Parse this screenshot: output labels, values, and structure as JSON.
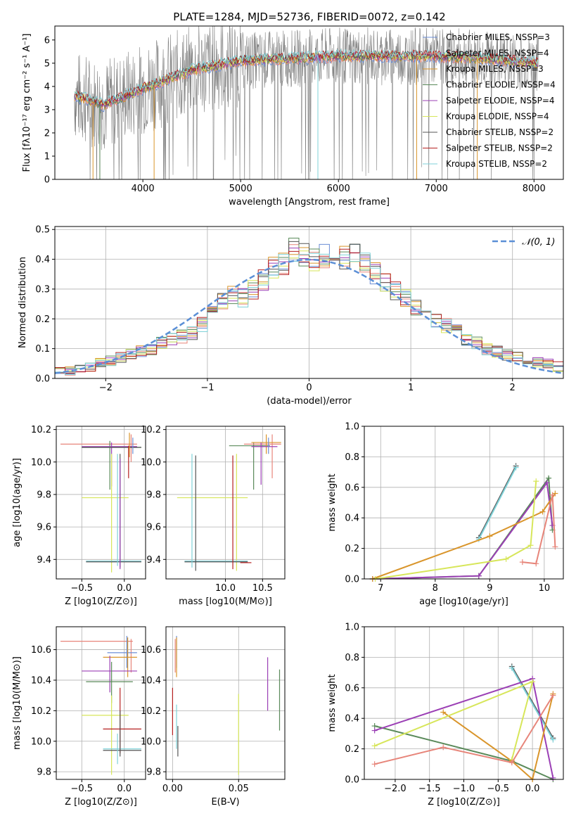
{
  "figure_title": "PLATE=1284, MJD=52736, FIBERID=0072, z=0.142",
  "series_colors": [
    "#6b8ed6",
    "#e7857a",
    "#d9952b",
    "#5a8a5a",
    "#9b3fb5",
    "#d7e65a",
    "#555555",
    "#b52020",
    "#7fd2d8"
  ],
  "chart_data": [
    {
      "type": "line",
      "title": "PLATE=1284, MJD=52736, FIBERID=0072, z=0.142",
      "xlabel": "wavelength [Angstrom, rest frame]",
      "ylabel": "Flux [fλ10⁻¹⁷ erg cm⁻² s⁻¹ A⁻¹]",
      "xlim": [
        3100,
        8300
      ],
      "ylim": [
        0,
        6.6
      ],
      "xticks": [
        "4000",
        "5000",
        "6000",
        "7000",
        "8000"
      ],
      "yticks": [
        "0",
        "1",
        "2",
        "3",
        "4",
        "5",
        "6"
      ],
      "legend": [
        "Chabrier MILES, NSSP=3",
        "Salpeter MILES, NSSP=4",
        "Kroupa MILES, NSSP=3",
        "Chabrier ELODIE, NSSP=4",
        "Salpeter ELODIE, NSSP=4",
        "Kroupa ELODIE, NSSP=4",
        "Chabrier STELIB, NSSP=2",
        "Salpeter STELIB, NSSP=2",
        "Kroupa STELIB, NSSP=2"
      ],
      "legend_position": "right",
      "grid": false,
      "continuum": {
        "x": [
          3300,
          3600,
          4000,
          4500,
          5000,
          5500,
          6000,
          6500,
          7000,
          7500,
          8000
        ],
        "y": [
          3.6,
          3.2,
          3.9,
          4.7,
          5.1,
          5.2,
          5.3,
          5.3,
          5.3,
          5.2,
          5.0
        ]
      }
    },
    {
      "type": "line",
      "xlabel": "(data-model)/error",
      "ylabel": "Normed distribution",
      "xlim": [
        -2.5,
        2.5
      ],
      "ylim": [
        0,
        0.51
      ],
      "xticks": [
        "−2",
        "−1",
        "0",
        "1",
        "2"
      ],
      "yticks": [
        "0.0",
        "0.1",
        "0.2",
        "0.3",
        "0.4",
        "0.5"
      ],
      "grid": true,
      "legend": [
        "𝒩(0, 1)"
      ],
      "legend_position": "top-right",
      "series": [
        {
          "name": "𝒩(0, 1)",
          "x": [
            -2.5,
            -2.0,
            -1.5,
            -1.0,
            -0.5,
            0,
            0.5,
            1.0,
            1.5,
            2.0,
            2.5
          ],
          "y": [
            0.018,
            0.054,
            0.13,
            0.242,
            0.352,
            0.399,
            0.352,
            0.242,
            0.13,
            0.054,
            0.018
          ]
        }
      ],
      "histograms": {
        "bin_edges": [
          -2.5,
          -2.4,
          -2.3,
          -2.2,
          -2.1,
          -2.0,
          -1.9,
          -1.8,
          -1.7,
          -1.6,
          -1.5,
          -1.4,
          -1.3,
          -1.2,
          -1.1,
          -1.0,
          -0.9,
          -0.8,
          -0.7,
          -0.6,
          -0.5,
          -0.4,
          -0.3,
          -0.2,
          -0.1,
          0.0,
          0.1,
          0.2,
          0.3,
          0.4,
          0.5,
          0.6,
          0.7,
          0.8,
          0.9,
          1.0,
          1.1,
          1.2,
          1.3,
          1.4,
          1.5,
          1.6,
          1.7,
          1.8,
          1.9,
          2.0,
          2.1,
          2.2,
          2.3,
          2.4,
          2.5
        ],
        "base_values": [
          0.025,
          0.027,
          0.03,
          0.04,
          0.05,
          0.06,
          0.07,
          0.08,
          0.09,
          0.1,
          0.12,
          0.135,
          0.14,
          0.15,
          0.18,
          0.22,
          0.26,
          0.28,
          0.27,
          0.3,
          0.33,
          0.37,
          0.385,
          0.43,
          0.42,
          0.4,
          0.41,
          0.43,
          0.41,
          0.42,
          0.39,
          0.35,
          0.32,
          0.29,
          0.27,
          0.24,
          0.22,
          0.2,
          0.18,
          0.16,
          0.13,
          0.12,
          0.1,
          0.09,
          0.08,
          0.07,
          0.06,
          0.055,
          0.05,
          0.04
        ]
      }
    },
    {
      "type": "scatter",
      "xlabel": "Z [log10(Z/Z⊙)]",
      "ylabel": "age  [log10(age/yr)]",
      "xlim": [
        -0.8,
        0.25
      ],
      "ylim": [
        9.28,
        10.22
      ],
      "xticks": [
        "−0.5",
        "0.0"
      ],
      "yticks": [
        "9.4",
        "9.6",
        "9.8",
        "10.0",
        "10.2"
      ],
      "grid": true
    },
    {
      "type": "scatter",
      "xlabel": "mass [log10(M/M⊙)]",
      "xlim": [
        9.2,
        10.8
      ],
      "ylim": [
        9.28,
        10.22
      ],
      "xticks": [
        "10.0",
        "10.5"
      ],
      "yticks": [
        "9.4",
        "9.6",
        "9.8",
        "10.0",
        "10.2"
      ],
      "grid": true
    },
    {
      "type": "line",
      "xlabel": "age  [log10(age/yr)]",
      "ylabel": "mass weight",
      "xlim": [
        6.7,
        10.35
      ],
      "ylim": [
        0,
        1
      ],
      "xticks": [
        "7",
        "8",
        "9",
        "10"
      ],
      "yticks": [
        "0.0",
        "0.2",
        "0.4",
        "0.6",
        "0.8",
        "1.0"
      ],
      "grid": true,
      "series": [
        {
          "x": [
            8.8,
            9.48
          ],
          "y": [
            0.27,
            0.74
          ]
        },
        {
          "x": [
            8.8,
            9.48
          ],
          "y": [
            0.26,
            0.73
          ]
        },
        {
          "x": [
            6.85,
            8.8,
            10.08,
            10.15
          ],
          "y": [
            0.0,
            0.02,
            0.66,
            0.32
          ]
        },
        {
          "x": [
            6.85,
            8.8,
            10.05,
            10.15
          ],
          "y": [
            0.0,
            0.02,
            0.63,
            0.35
          ]
        },
        {
          "x": [
            6.85,
            9.0,
            9.97,
            10.2
          ],
          "y": [
            0.0,
            0.28,
            0.44,
            0.56
          ]
        },
        {
          "x": [
            6.9,
            9.3,
            9.75,
            9.85
          ],
          "y": [
            0.0,
            0.13,
            0.22,
            0.64
          ]
        },
        {
          "x": [
            9.6,
            9.85,
            10.15,
            10.2
          ],
          "y": [
            0.11,
            0.1,
            0.55,
            0.21
          ]
        }
      ]
    },
    {
      "type": "scatter",
      "xlabel": "Z [log10(Z/Z⊙)]",
      "ylabel": "mass [log10(M/M⊙)]",
      "xlim": [
        -0.8,
        0.25
      ],
      "ylim": [
        9.75,
        10.75
      ],
      "xticks": [
        "−0.5",
        "0.0"
      ],
      "yticks": [
        "9.8",
        "10.0",
        "10.2",
        "10.4",
        "10.6"
      ],
      "grid": true
    },
    {
      "type": "scatter",
      "xlabel": "E(B-V)",
      "xlim": [
        -0.005,
        0.085
      ],
      "ylim": [
        9.75,
        10.75
      ],
      "xticks": [
        "0.00",
        "0.05"
      ],
      "yticks": [
        "9.8",
        "10.0",
        "10.2",
        "10.4",
        "10.6"
      ],
      "grid": true
    },
    {
      "type": "line",
      "xlabel": "Z [log10(Z/Z⊙)]",
      "ylabel": "mass weight",
      "xlim": [
        -2.45,
        0.45
      ],
      "ylim": [
        0,
        1
      ],
      "xticks": [
        "−2.0",
        "−1.5",
        "−1.0",
        "−0.5",
        "0.0"
      ],
      "yticks": [
        "0.0",
        "0.2",
        "0.4",
        "0.6",
        "0.8",
        "1.0"
      ],
      "grid": true,
      "series": [
        {
          "x": [
            -0.3,
            0.3
          ],
          "y": [
            0.74,
            0.27
          ]
        },
        {
          "x": [
            -0.3,
            0.3
          ],
          "y": [
            0.73,
            0.26
          ]
        },
        {
          "x": [
            -2.3,
            -0.3,
            0.3
          ],
          "y": [
            0.35,
            0.12,
            0.0
          ]
        },
        {
          "x": [
            -2.3,
            0.0,
            0.3
          ],
          "y": [
            0.32,
            0.66,
            0.01
          ]
        },
        {
          "x": [
            -1.3,
            -0.3,
            0.0,
            0.3
          ],
          "y": [
            0.44,
            0.12,
            0.0,
            0.56
          ]
        },
        {
          "x": [
            -2.3,
            0.0,
            -0.3
          ],
          "y": [
            0.22,
            0.64,
            0.13
          ]
        },
        {
          "x": [
            -2.3,
            -1.3,
            -0.3,
            0.3
          ],
          "y": [
            0.1,
            0.21,
            0.11,
            0.55
          ]
        }
      ]
    }
  ]
}
